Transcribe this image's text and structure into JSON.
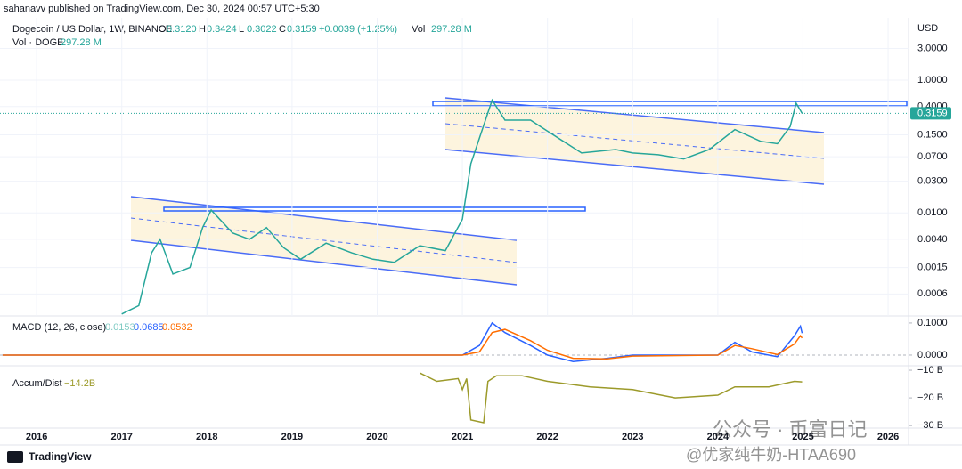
{
  "header": {
    "published": "sahanavv published on TradingView.com, Dec 30, 2024 00:57 UTC+5:30",
    "currency": "USD",
    "ohlc": [
      "O",
      "0.3120",
      "H",
      "0.3424",
      "L",
      "0.3022",
      "C",
      "0.3159"
    ],
    "change": "+0.0039 (+1.25%)",
    "vol_label": "Vol",
    "vol_value": "297.28 M",
    "vol_line_label": "Vol · DOGE",
    "vol_line_value": "297.28 M"
  },
  "chart_data": [
    {
      "type": "line",
      "title": "Dogecoin / US Dollar, 1W, BINANCE",
      "log_scale": true,
      "grid": true,
      "xlim": [
        2015.57,
        2026.24
      ],
      "xticks": [
        2016,
        2017,
        2018,
        2019,
        2020,
        2021,
        2022,
        2023,
        2024,
        2025,
        2026
      ],
      "ylim": [
        0.00028,
        8.7
      ],
      "yticks": [
        {
          "value": 3,
          "label": "3.0000"
        },
        {
          "value": 1,
          "label": "1.0000"
        },
        {
          "value": 0.4,
          "label": "0.4000"
        },
        {
          "value": 0.15,
          "label": "0.1500"
        },
        {
          "value": 0.07,
          "label": "0.0700"
        },
        {
          "value": 0.03,
          "label": "0.0300"
        },
        {
          "value": 0.01,
          "label": "0.0100"
        },
        {
          "value": 0.004,
          "label": "0.0040"
        },
        {
          "value": 0.0015,
          "label": "0.0015"
        },
        {
          "value": 0.0006,
          "label": "0.0006"
        }
      ],
      "last_price": {
        "value": 0.3159,
        "label": "0.3159"
      },
      "x": [
        2017.0,
        2017.2,
        2017.35,
        2017.45,
        2017.6,
        2017.8,
        2017.95,
        2018.05,
        2018.3,
        2018.5,
        2018.7,
        2018.9,
        2019.1,
        2019.4,
        2019.7,
        2019.95,
        2020.2,
        2020.5,
        2020.8,
        2021.0,
        2021.1,
        2021.35,
        2021.5,
        2021.8,
        2022.0,
        2022.4,
        2022.8,
        2023.0,
        2023.3,
        2023.6,
        2023.9,
        2024.2,
        2024.5,
        2024.7,
        2024.85,
        2024.92,
        2024.99
      ],
      "series": [
        {
          "color": "#26a69a",
          "values": [
            0.0003,
            0.0004,
            0.0025,
            0.004,
            0.0012,
            0.0015,
            0.006,
            0.011,
            0.005,
            0.004,
            0.006,
            0.003,
            0.002,
            0.0035,
            0.0025,
            0.002,
            0.0018,
            0.0032,
            0.0027,
            0.008,
            0.055,
            0.5,
            0.25,
            0.25,
            0.17,
            0.08,
            0.09,
            0.08,
            0.075,
            0.065,
            0.09,
            0.18,
            0.12,
            0.11,
            0.2,
            0.45,
            0.3159
          ]
        }
      ]
    },
    {
      "type": "line",
      "title": "MACD (12, 26, close)",
      "legend_values": [
        0.0153,
        0.0685,
        0.0532
      ],
      "legend_colors": [
        "#80cbc4",
        "#2962ff",
        "#ff6d00"
      ],
      "ylim": [
        -0.0306,
        0.122
      ],
      "yticks": [
        {
          "value": 0.1,
          "label": "0.1000"
        },
        {
          "value": 0,
          "label": "0.0000"
        }
      ],
      "x": [
        2015.6,
        2021.0,
        2021.2,
        2021.35,
        2021.5,
        2021.8,
        2022.0,
        2022.3,
        2022.7,
        2023.0,
        2024.0,
        2024.2,
        2024.4,
        2024.7,
        2024.9,
        2024.97,
        2024.99
      ],
      "series": [
        {
          "color": "#2962ff",
          "values": [
            0,
            0,
            0.03,
            0.1,
            0.07,
            0.03,
            0,
            -0.02,
            -0.01,
            0,
            0,
            0.04,
            0.01,
            -0.005,
            0.06,
            0.09,
            0.0685
          ]
        },
        {
          "color": "#ff6d00",
          "values": [
            0,
            0,
            0.01,
            0.07,
            0.08,
            0.045,
            0.015,
            -0.01,
            -0.012,
            -0.003,
            0,
            0.03,
            0.02,
            0.002,
            0.035,
            0.06,
            0.0532
          ]
        }
      ]
    },
    {
      "type": "line",
      "title": "Accum/Dist",
      "legend_value": "−14.2B",
      "ylim": [
        -30.6,
        -8.7
      ],
      "yticks": [
        {
          "value": -10,
          "label": "−10 B"
        },
        {
          "value": -20,
          "label": "−20 B"
        },
        {
          "value": -30,
          "label": "−30 B"
        }
      ],
      "x": [
        2020.5,
        2020.7,
        2020.95,
        2021.0,
        2021.05,
        2021.1,
        2021.25,
        2021.3,
        2021.4,
        2021.7,
        2022.0,
        2022.5,
        2023.0,
        2023.5,
        2024.0,
        2024.2,
        2024.6,
        2024.9,
        2024.99
      ],
      "series": [
        {
          "color": "#9c9a2a",
          "values": [
            -11,
            -14,
            -13,
            -17,
            -13,
            -28,
            -29,
            -14,
            -12,
            -12,
            -14,
            -16,
            -17,
            -20,
            -19,
            -16,
            -16,
            -14,
            -14.2
          ]
        }
      ]
    }
  ],
  "footer": {
    "brand": "TradingView",
    "watermark_1": "公众号 · 币富日记",
    "watermark_2": "@优家纯牛奶-HTAA690"
  }
}
